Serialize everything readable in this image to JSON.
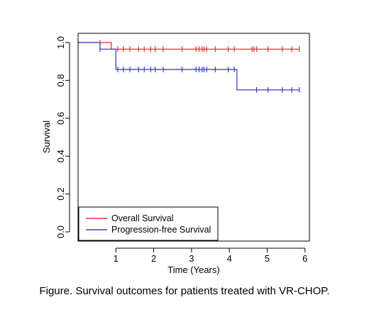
{
  "caption": "Figure. Survival outcomes for patients treated with VR-CHOP.",
  "chart_data": {
    "type": "line",
    "title": "",
    "xlabel": "Time (Years)",
    "ylabel": "Survival",
    "xlim": [
      0,
      6
    ],
    "ylim": [
      0,
      1
    ],
    "x_ticks": [
      1,
      2,
      3,
      4,
      5,
      6
    ],
    "x_tick_labels": [
      "1",
      "2",
      "3",
      "4",
      "5",
      "6"
    ],
    "y_ticks": [
      0.0,
      0.2,
      0.4,
      0.6,
      0.8,
      1.0
    ],
    "y_tick_labels": [
      "0.0",
      "0.2",
      "0.4",
      "0.6",
      "0.8",
      "1.0"
    ],
    "grid": false,
    "legend_position": "bottom-left",
    "series": [
      {
        "name": "Overall Survival",
        "color": "#e8322e",
        "steps": [
          [
            0,
            1.0
          ],
          [
            0.58,
            1.0
          ],
          [
            0.88,
            0.965
          ],
          [
            5.85,
            0.965
          ]
        ],
        "censor_times": [
          0.58,
          1.05,
          1.2,
          1.37,
          1.6,
          1.75,
          1.92,
          2.04,
          2.25,
          2.75,
          3.12,
          3.2,
          3.28,
          3.33,
          3.4,
          3.63,
          3.97,
          4.13,
          4.6,
          4.65,
          4.72,
          5.02,
          5.4,
          5.65,
          5.85
        ]
      },
      {
        "name": "Progression-free Survival",
        "color": "#3a3fd2",
        "steps": [
          [
            0,
            1.0
          ],
          [
            0.58,
            1.0
          ],
          [
            0.58,
            0.965
          ],
          [
            1.0,
            0.965
          ],
          [
            1.0,
            0.858
          ],
          [
            4.2,
            0.858
          ],
          [
            4.2,
            0.75
          ],
          [
            5.85,
            0.75
          ]
        ],
        "censor_times": [
          0.58,
          1.05,
          1.2,
          1.37,
          1.6,
          1.75,
          1.92,
          2.04,
          2.25,
          2.75,
          3.12,
          3.2,
          3.28,
          3.33,
          3.4,
          3.63,
          3.97,
          4.13,
          4.72,
          5.02,
          5.4,
          5.65,
          5.85
        ]
      }
    ]
  }
}
